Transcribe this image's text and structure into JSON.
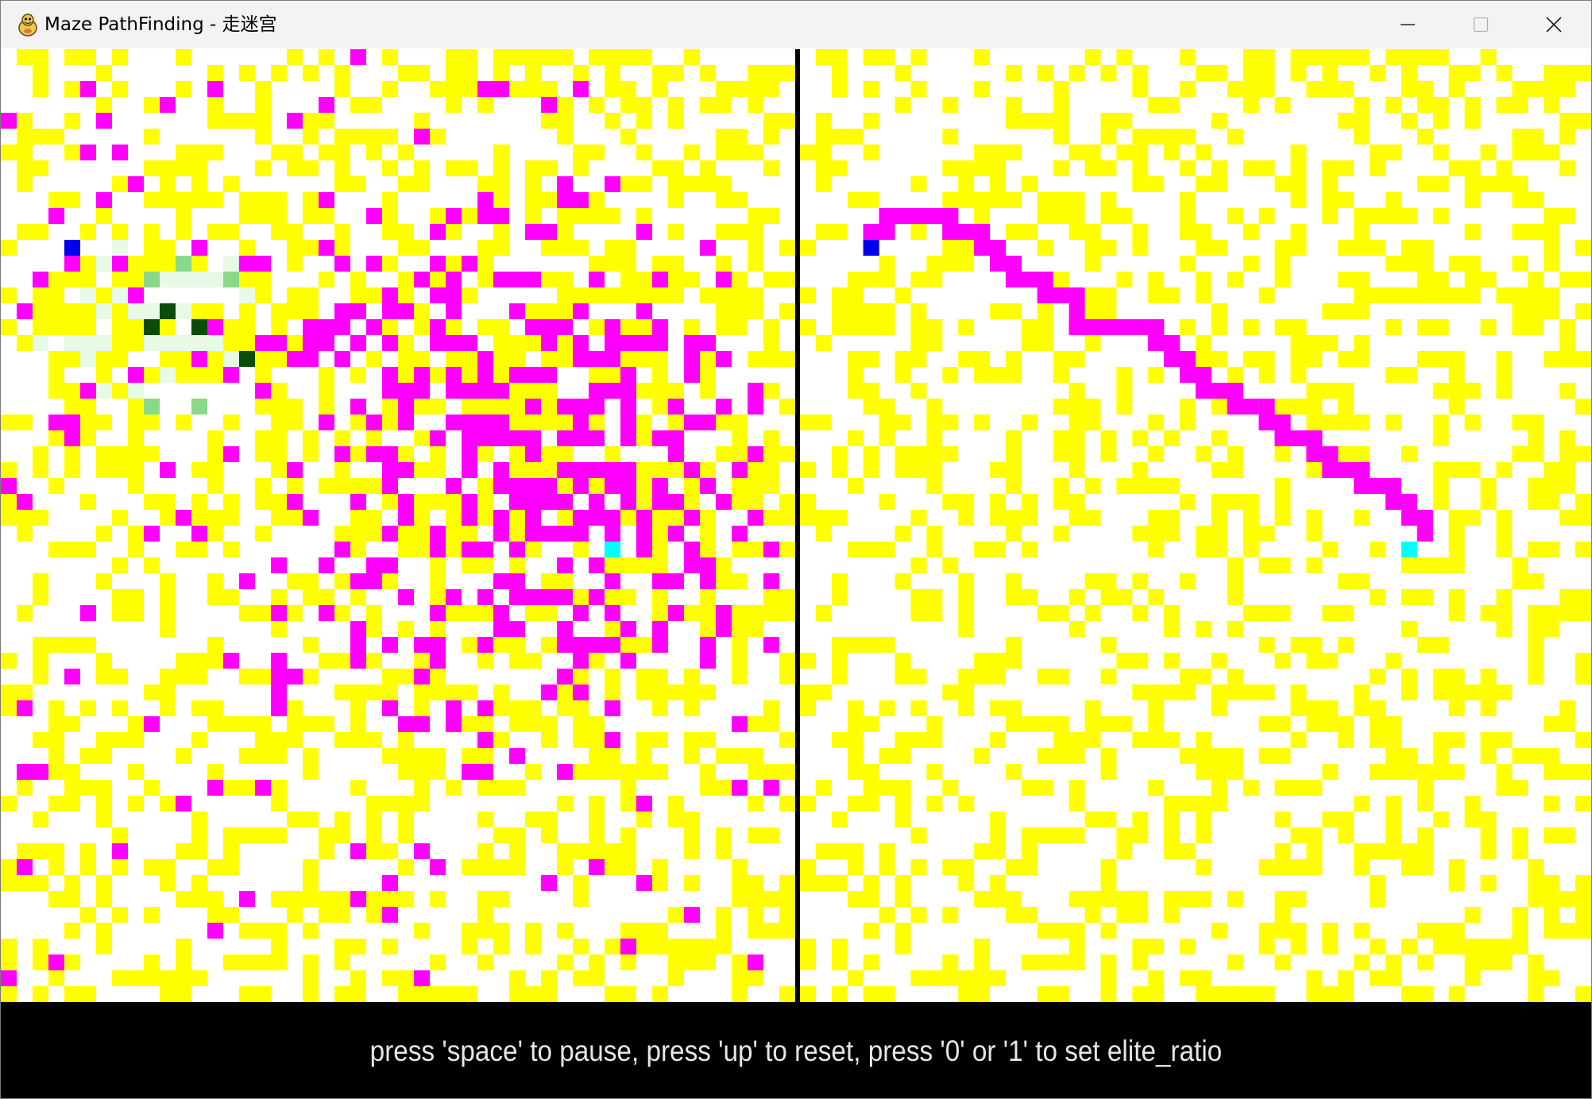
{
  "window": {
    "title": "Maze PathFinding - 走迷宫",
    "app_icon": "pygame-snake-icon",
    "controls": {
      "minimize_icon": "minimize-icon",
      "maximize_icon": "maximize-icon",
      "close_icon": "close-icon"
    }
  },
  "colors": {
    "wall": "#ffff00",
    "visited": "#ff00ff",
    "start": "#0000ee",
    "goal": "#00ffff",
    "frontier_light": "#e6fae6",
    "frontier_mid": "#8ad88a",
    "frontier_dark": "#0a4d0a",
    "background": "#ffffff",
    "divider": "#000000",
    "status_bg": "#000000",
    "status_text": "#e6e6e6"
  },
  "maze": {
    "cols": 50,
    "rows": 60,
    "start_cell": [
      4,
      12
    ],
    "goal_cell": [
      38,
      31
    ]
  },
  "status_bar": {
    "hint": "press 'space' to pause, press 'up' to reset, press '0' or '1' to set elite_ratio"
  }
}
